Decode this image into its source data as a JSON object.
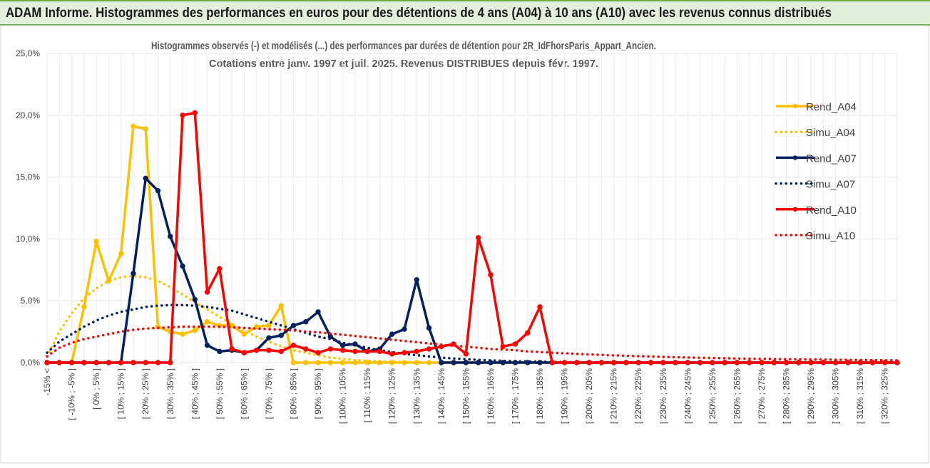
{
  "header": {
    "title": "ADAM Informe. Histogrammes des performances en euros pour des détentions de 4 ans (A04) à 10 ans (A10) avec les revenus connus distribués"
  },
  "chart_data": {
    "type": "line",
    "title": "Histogrammes observés (-) et modélisés (...) des performances par durées de détention pour 2R_IdFhorsParis_Appart_Ancien.",
    "subtitle": "Cotations entre janv. 1997 et juil. 2025. Revenus DISTRIBUES depuis févr. 1997.",
    "categories": [
      "-15% <",
      null,
      "[ -10% ; -5% ]",
      null,
      "[ 0% ; 5% ]",
      null,
      "[ 10% ; 15% ]",
      null,
      "[ 20% ; 25% ]",
      null,
      "[ 30% ; 35% ]",
      null,
      "[ 40% ; 45% ]",
      null,
      "[ 50% ; 55% ]",
      null,
      "[ 60% ; 65% ]",
      null,
      "[ 70% ; 75% ]",
      null,
      "[ 80% ; 85% ]",
      null,
      "[ 90% ; 95% ]",
      null,
      "[ 100% ; 105%",
      null,
      "[ 110% ; 115%",
      null,
      "[ 120% ; 125%",
      null,
      "[ 130% ; 135%",
      null,
      "[ 140% ; 145%",
      null,
      "[ 150% ; 155%",
      null,
      "[ 160% ; 165%",
      null,
      "[ 170% ; 175%",
      null,
      "[ 180% ; 185%",
      null,
      "[ 190% ; 195%",
      null,
      "[ 200% ; 205%",
      null,
      "[ 210% ; 215%",
      null,
      "[ 220% ; 225%",
      null,
      "[ 230% ; 235%",
      null,
      "[ 240% ; 245%",
      null,
      "[ 250% ; 255%",
      null,
      "[ 260% ; 265%",
      null,
      "[ 270% ; 275%",
      null,
      "[ 280% ; 285%",
      null,
      "[ 290% ; 295%",
      null,
      "[ 300% ; 305%",
      null,
      "[ 310% ; 315%",
      null,
      "[ 320% ; 325%",
      null
    ],
    "ylim": [
      0,
      25
    ],
    "yticks": [
      {
        "value": 0,
        "label": "0,0%"
      },
      {
        "value": 5,
        "label": "5,0%"
      },
      {
        "value": 10,
        "label": "10,0%"
      },
      {
        "value": 15,
        "label": "15,0%"
      },
      {
        "value": 20,
        "label": "20,0%"
      },
      {
        "value": 25,
        "label": "25,0%"
      }
    ],
    "grid": true,
    "legend": "right",
    "series": [
      {
        "name": "Rend_A04",
        "color": "#ffc000",
        "style": "solid",
        "marker": true,
        "values": [
          0,
          0,
          0,
          4.5,
          9.8,
          6.6,
          8.8,
          19.1,
          18.9,
          2.9,
          2.5,
          2.3,
          2.6,
          3.3,
          3.0,
          3.0,
          2.3,
          2.9,
          3.0,
          4.6,
          0,
          0,
          0,
          0,
          0,
          0,
          0,
          0,
          0,
          0,
          0,
          0,
          0,
          0,
          0,
          0,
          0,
          0,
          0,
          0,
          0,
          0,
          0,
          0,
          0,
          0,
          0,
          0,
          0,
          0,
          0,
          0,
          0,
          0,
          0,
          0,
          0,
          0,
          0,
          0,
          0,
          0,
          0,
          0,
          0,
          0,
          0,
          0,
          0,
          0
        ]
      },
      {
        "name": "Simu_A04",
        "color": "#ffc000",
        "style": "dotted",
        "marker": false,
        "values": [
          0.5,
          2.5,
          4.0,
          5.2,
          6.0,
          6.6,
          6.9,
          7.0,
          6.9,
          6.6,
          6.1,
          5.5,
          4.9,
          4.3,
          3.7,
          3.1,
          2.6,
          2.1,
          1.7,
          1.3,
          1.0,
          0.8,
          0.6,
          0.4,
          0.3,
          0.2,
          0.15,
          0.1,
          0.08,
          0.05,
          0.03,
          0.02,
          0,
          0,
          0,
          0,
          0,
          0,
          0,
          0,
          0,
          0,
          0,
          0,
          0,
          0,
          0,
          0,
          0,
          0,
          0,
          0,
          0,
          0,
          0,
          0,
          0,
          0,
          0,
          0,
          0,
          0,
          0,
          0,
          0,
          0,
          0,
          0,
          0,
          0
        ]
      },
      {
        "name": "Rend_A07",
        "color": "#002060",
        "style": "solid",
        "marker": true,
        "values": [
          0,
          0,
          0,
          0,
          0,
          0,
          0,
          7.2,
          14.9,
          13.9,
          10.2,
          7.8,
          5.1,
          1.4,
          0.9,
          1.0,
          0.8,
          1.0,
          2.0,
          2.2,
          3.0,
          3.3,
          4.1,
          2.1,
          1.4,
          1.5,
          0.9,
          1.1,
          2.3,
          2.7,
          6.7,
          2.8,
          0,
          0,
          0,
          0,
          0,
          0,
          0,
          0,
          0,
          0,
          0,
          0,
          0,
          0,
          0,
          0,
          0,
          0,
          0,
          0,
          0,
          0,
          0,
          0,
          0,
          0,
          0,
          0,
          0,
          0,
          0,
          0,
          0,
          0,
          0,
          0,
          0,
          0
        ]
      },
      {
        "name": "Simu_A07",
        "color": "#002060",
        "style": "dotted",
        "marker": false,
        "values": [
          0.8,
          1.7,
          2.3,
          2.9,
          3.4,
          3.8,
          4.1,
          4.3,
          4.5,
          4.6,
          4.65,
          4.65,
          4.6,
          4.5,
          4.35,
          4.2,
          3.9,
          3.6,
          3.3,
          3.0,
          2.7,
          2.4,
          2.1,
          1.9,
          1.6,
          1.4,
          1.2,
          1.0,
          0.85,
          0.7,
          0.6,
          0.5,
          0.4,
          0.33,
          0.27,
          0.22,
          0.18,
          0.14,
          0.11,
          0.09,
          0.07,
          0.05,
          0.04,
          0.03,
          0.03,
          0.02,
          0.02,
          0.01,
          0.01,
          0,
          0,
          0,
          0,
          0,
          0,
          0,
          0,
          0,
          0,
          0,
          0,
          0,
          0,
          0,
          0,
          0,
          0,
          0,
          0,
          0
        ]
      },
      {
        "name": "Rend_A10",
        "color": "#ff0000",
        "style": "solid",
        "marker": true,
        "values": [
          0,
          0,
          0,
          0,
          0,
          0,
          0,
          0,
          0,
          0,
          0,
          20.0,
          20.2,
          5.7,
          7.6,
          1.1,
          0.8,
          1.0,
          1.0,
          0.9,
          1.4,
          1.1,
          0.8,
          1.1,
          1.0,
          0.9,
          0.9,
          0.9,
          0.7,
          0.8,
          0.9,
          1.1,
          1.3,
          1.5,
          0.7,
          10.1,
          7.1,
          1.3,
          1.5,
          2.4,
          4.5,
          0,
          0,
          0,
          0,
          0,
          0,
          0,
          0,
          0,
          0,
          0,
          0,
          0,
          0,
          0,
          0,
          0,
          0,
          0,
          0,
          0,
          0,
          0,
          0,
          0,
          0,
          0,
          0,
          0
        ]
      },
      {
        "name": "Simu_A10",
        "color": "#ff0000",
        "style": "dotted",
        "marker": false,
        "values": [
          0.5,
          1.2,
          1.6,
          1.9,
          2.1,
          2.3,
          2.5,
          2.65,
          2.75,
          2.8,
          2.85,
          2.9,
          2.9,
          2.9,
          2.9,
          2.85,
          2.8,
          2.75,
          2.7,
          2.65,
          2.6,
          2.5,
          2.45,
          2.35,
          2.25,
          2.15,
          2.05,
          1.95,
          1.85,
          1.75,
          1.65,
          1.55,
          1.45,
          1.35,
          1.3,
          1.2,
          1.1,
          1.05,
          1.0,
          0.9,
          0.85,
          0.8,
          0.75,
          0.7,
          0.66,
          0.62,
          0.58,
          0.55,
          0.52,
          0.49,
          0.46,
          0.43,
          0.41,
          0.39,
          0.37,
          0.35,
          0.33,
          0.31,
          0.3,
          0.28,
          0.27,
          0.26,
          0.25,
          0.24,
          0.23,
          0.22,
          0.21,
          0.2,
          0.19,
          0.18
        ]
      }
    ]
  }
}
